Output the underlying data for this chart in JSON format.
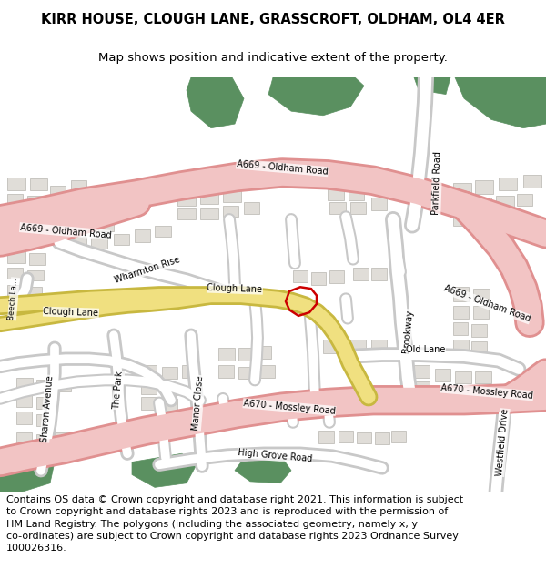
{
  "title": "KIRR HOUSE, CLOUGH LANE, GRASSCROFT, OLDHAM, OL4 4ER",
  "subtitle": "Map shows position and indicative extent of the property.",
  "title_fontsize": 10.5,
  "subtitle_fontsize": 9.5,
  "footer": "Contains OS data © Crown copyright and database right 2021. This information is subject\nto Crown copyright and database rights 2023 and is reproduced with the permission of\nHM Land Registry. The polygons (including the associated geometry, namely x, y\nco-ordinates) are subject to Crown copyright and database rights 2023 Ordnance Survey\n100026316.",
  "footer_fontsize": 8.0,
  "map_bg": "#f8f7f5",
  "road_major_fill": "#f2c4c4",
  "road_major_edge": "#e09090",
  "road_minor_fill": "#ffffff",
  "road_minor_edge": "#c8c8c8",
  "road_clough_fill": "#f0e080",
  "road_clough_edge": "#c8b840",
  "green_color": "#5a9060",
  "building_fill": "#e0ddd8",
  "building_edge": "#b8b5b0",
  "property_edge": "#cc0000",
  "property_lw": 1.8
}
